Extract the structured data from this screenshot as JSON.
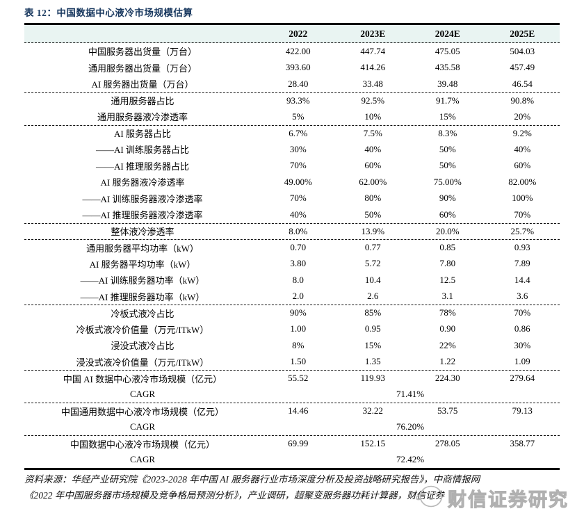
{
  "colors": {
    "title_navy": "#17375e",
    "header_bg": "#e9f4f2",
    "watermark_gray": "#cfcfcf"
  },
  "title": "表 12：中国数据中心液冷市场规模估算",
  "table": {
    "columns": [
      "2022",
      "2023E",
      "2024E",
      "2025E"
    ],
    "sections": [
      {
        "rows": [
          {
            "label": "中国服务器出货量（万台）",
            "values": [
              "422.00",
              "447.74",
              "475.05",
              "504.03"
            ]
          },
          {
            "label": "通用服务器出货量（万台）",
            "values": [
              "393.60",
              "414.26",
              "435.58",
              "457.49"
            ]
          },
          {
            "label": "AI 服务器出货量（万台）",
            "values": [
              "28.40",
              "33.48",
              "39.48",
              "46.54"
            ]
          }
        ]
      },
      {
        "rows": [
          {
            "label": "通用服务器占比",
            "values": [
              "93.3%",
              "92.5%",
              "91.7%",
              "90.8%"
            ]
          },
          {
            "label": "通用服务器液冷渗透率",
            "values": [
              "5%",
              "10%",
              "15%",
              "20%"
            ]
          }
        ]
      },
      {
        "rows": [
          {
            "label": "AI 服务器占比",
            "values": [
              "6.7%",
              "7.5%",
              "8.3%",
              "9.2%"
            ]
          },
          {
            "label": "——AI 训练服务器占比",
            "values": [
              "30%",
              "40%",
              "50%",
              "40%"
            ]
          },
          {
            "label": "——AI 推理服务器占比",
            "values": [
              "70%",
              "60%",
              "50%",
              "60%"
            ]
          },
          {
            "label": "AI 服务器液冷渗透率",
            "values": [
              "49.00%",
              "62.00%",
              "75.00%",
              "82.00%"
            ]
          },
          {
            "label": "——AI 训练服务器液冷渗透率",
            "values": [
              "70%",
              "80%",
              "90%",
              "100%"
            ]
          },
          {
            "label": "——AI 推理服务器液冷渗透率",
            "values": [
              "40%",
              "50%",
              "60%",
              "70%"
            ]
          }
        ]
      },
      {
        "rows": [
          {
            "label": "整体液冷渗透率",
            "values": [
              "8.0%",
              "13.9%",
              "20.0%",
              "25.7%"
            ]
          }
        ]
      },
      {
        "rows": [
          {
            "label": "通用服务器平均功率（kW）",
            "values": [
              "0.70",
              "0.77",
              "0.85",
              "0.93"
            ]
          },
          {
            "label": "AI 服务器平均功率（kW）",
            "values": [
              "3.80",
              "5.72",
              "7.80",
              "7.89"
            ]
          },
          {
            "label": "——AI 训练服务器功率（kW）",
            "values": [
              "8.0",
              "10.4",
              "12.5",
              "14.4"
            ]
          },
          {
            "label": "——AI 推理服务器功率（kW）",
            "values": [
              "2.0",
              "2.6",
              "3.1",
              "3.6"
            ]
          }
        ]
      },
      {
        "rows": [
          {
            "label": "冷板式液冷占比",
            "values": [
              "90%",
              "85%",
              "78%",
              "70%"
            ]
          },
          {
            "label": "冷板式液冷价值量（万元/ITkW）",
            "values": [
              "1.00",
              "0.95",
              "0.90",
              "0.86"
            ]
          },
          {
            "label": "浸没式液冷占比",
            "values": [
              "8%",
              "15%",
              "22%",
              "30%"
            ]
          },
          {
            "label": "浸没式液冷价值量（万元/ITkW）",
            "values": [
              "1.50",
              "1.35",
              "1.22",
              "1.09"
            ]
          }
        ]
      },
      {
        "rows": [
          {
            "label": "中国 AI 数据中心液冷市场规模（亿元）",
            "values": [
              "55.52",
              "119.93",
              "224.30",
              "279.64"
            ]
          },
          {
            "label": "CAGR",
            "span_value": "71.41%"
          }
        ]
      },
      {
        "rows": [
          {
            "label": "中国通用数据中心液冷市场规模（亿元）",
            "values": [
              "14.46",
              "32.22",
              "53.75",
              "79.13"
            ]
          },
          {
            "label": "CAGR",
            "span_value": "76.20%"
          }
        ]
      },
      {
        "rows": [
          {
            "label": "中国数据中心液冷市场规模（亿元）",
            "values": [
              "69.99",
              "152.15",
              "278.05",
              "358.77"
            ]
          },
          {
            "label": "CAGR",
            "span_value": "72.42%"
          }
        ]
      }
    ]
  },
  "source": {
    "line1": "资料来源：华经产业研究院《2023-2028 年中国 AI 服务器行业市场深度分析及投资战略研究报告》，中商情报网",
    "line2": "《2022 年中国服务器市场规模及竞争格局预测分析》，产业调研，超聚变服务器功耗计算器，财信证券"
  },
  "watermark": {
    "text": "财信证券研究"
  }
}
